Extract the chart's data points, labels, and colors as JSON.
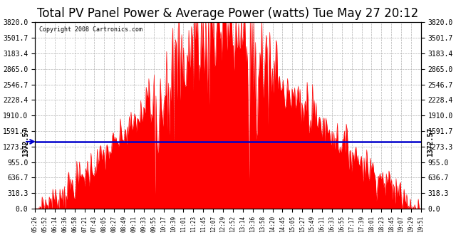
{
  "title": "Total PV Panel Power & Average Power (watts) Tue May 27 20:12",
  "copyright": "Copyright 2008 Cartronics.com",
  "average_power": 1372.57,
  "y_max": 3820.0,
  "y_ticks": [
    0.0,
    318.3,
    636.7,
    955.0,
    1273.3,
    1591.7,
    1910.0,
    2228.4,
    2546.7,
    2865.0,
    3183.4,
    3501.7,
    3820.0
  ],
  "y_tick_labels": [
    "0.0",
    "318.3",
    "636.7",
    "955.0",
    "1273.3",
    "1591.7",
    "1910.0",
    "2228.4",
    "2546.7",
    "2865.0",
    "3183.4",
    "3501.7",
    "3820.0"
  ],
  "x_labels": [
    "05:26",
    "05:52",
    "06:14",
    "06:36",
    "06:58",
    "07:21",
    "07:43",
    "08:05",
    "08:27",
    "08:49",
    "09:11",
    "09:33",
    "09:55",
    "10:17",
    "10:39",
    "11:01",
    "11:23",
    "11:45",
    "12:07",
    "12:29",
    "12:52",
    "13:14",
    "13:36",
    "13:58",
    "14:20",
    "14:45",
    "15:05",
    "15:27",
    "15:49",
    "16:11",
    "16:33",
    "16:55",
    "17:17",
    "17:39",
    "18:01",
    "18:23",
    "18:45",
    "19:07",
    "19:29",
    "19:51"
  ],
  "fill_color": "#FF0000",
  "line_color": "#0000CC",
  "grid_color": "#AAAAAA",
  "bg_color": "#FFFFFF",
  "title_fontsize": 12,
  "avg_label": "1372.57"
}
